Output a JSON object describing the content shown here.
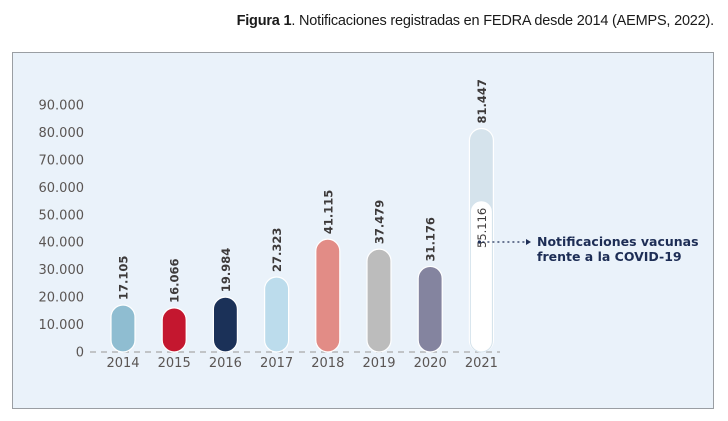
{
  "caption": {
    "bold": "Figura 1",
    "rest": ". Notificaciones registradas en FEDRA desde 2014 (AEMPS, 2022)."
  },
  "chart_data": {
    "type": "bar",
    "title": "Notificaciones registradas en FEDRA desde 2014 (AEMPS, 2022)",
    "xlabel": "",
    "ylabel": "",
    "ylim": [
      0,
      90000
    ],
    "yticks": [
      0,
      10000,
      20000,
      30000,
      40000,
      50000,
      60000,
      70000,
      80000,
      90000
    ],
    "ytick_labels": [
      "0",
      "10.000",
      "20.000",
      "30.000",
      "40.000",
      "50.000",
      "60.000",
      "70.000",
      "80.000",
      "90.000"
    ],
    "grid": false,
    "categories": [
      "2014",
      "2015",
      "2016",
      "2017",
      "2018",
      "2019",
      "2020",
      "2021"
    ],
    "values": [
      17105,
      16066,
      19984,
      27323,
      41115,
      37479,
      31176,
      81447
    ],
    "value_labels": [
      "17.105",
      "16.066",
      "19.984",
      "27.323",
      "41.115",
      "37.479",
      "31.176",
      "81.447"
    ],
    "colors": [
      "#8fbdd1",
      "#c4172f",
      "#1b3158",
      "#bcdcec",
      "#e28c86",
      "#bcbcbc",
      "#84849f",
      "#d5e3ec"
    ],
    "overlay": {
      "category": "2021",
      "value": 55116,
      "value_label": "55.116",
      "color": "#ffffff",
      "annotation": [
        "Notificaciones vacunas",
        "frente a la COVID-19"
      ],
      "annotation_color": "#1d2d55"
    },
    "legend": "none"
  }
}
